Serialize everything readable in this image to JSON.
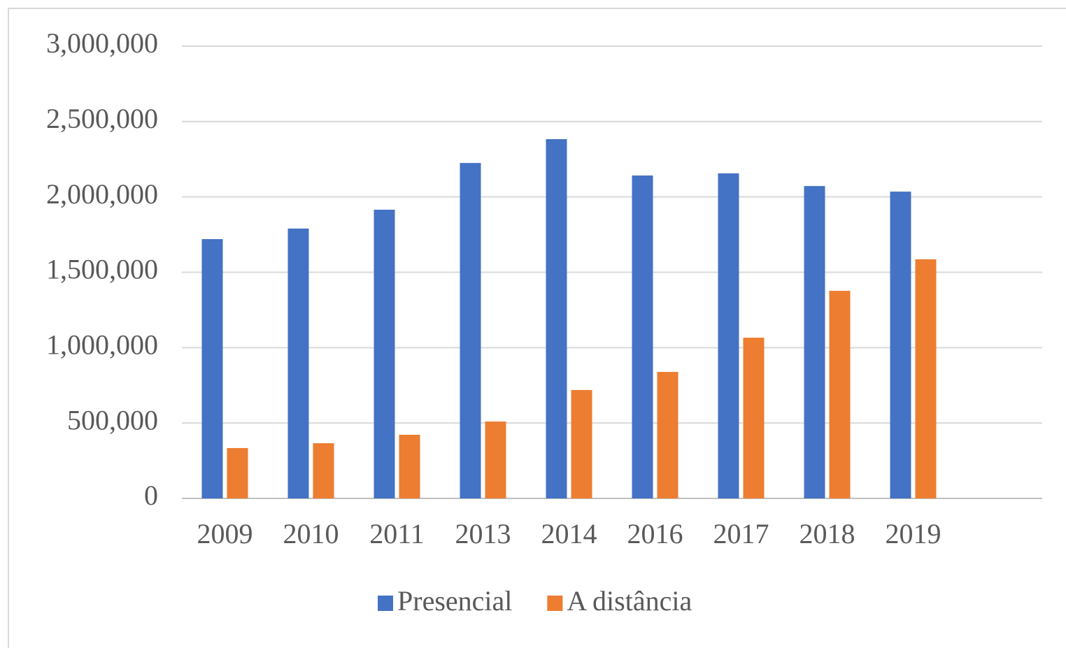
{
  "chart_data": {
    "type": "bar",
    "categories": [
      "2009",
      "2010",
      "2011",
      "2013",
      "2014",
      "2016",
      "2017",
      "2018",
      "2019",
      null
    ],
    "series": [
      {
        "name": "Presencial",
        "color": "#4472c4",
        "values": [
          1720000,
          1790000,
          1915000,
          2225000,
          2383000,
          2142000,
          2156000,
          2072000,
          2035000,
          null
        ]
      },
      {
        "name": "A distância",
        "color": "#ed7d31",
        "values": [
          334000,
          366000,
          422000,
          510000,
          719000,
          839000,
          1066000,
          1377000,
          1586000,
          null
        ]
      }
    ],
    "ylim": [
      0,
      3000000
    ],
    "yticks": [
      0,
      {
        "value": 500000,
        "label": "500,000"
      },
      {
        "value": 1000000,
        "label": "1,000,000"
      },
      {
        "value": 1500000,
        "label": "1,500,000"
      },
      {
        "value": 2000000,
        "label": "2,000,000"
      },
      {
        "value": 2500000,
        "label": "2,500,000"
      },
      {
        "value": 3000000,
        "label": "3,000,000"
      }
    ],
    "grid": true,
    "legend": "bottom"
  }
}
